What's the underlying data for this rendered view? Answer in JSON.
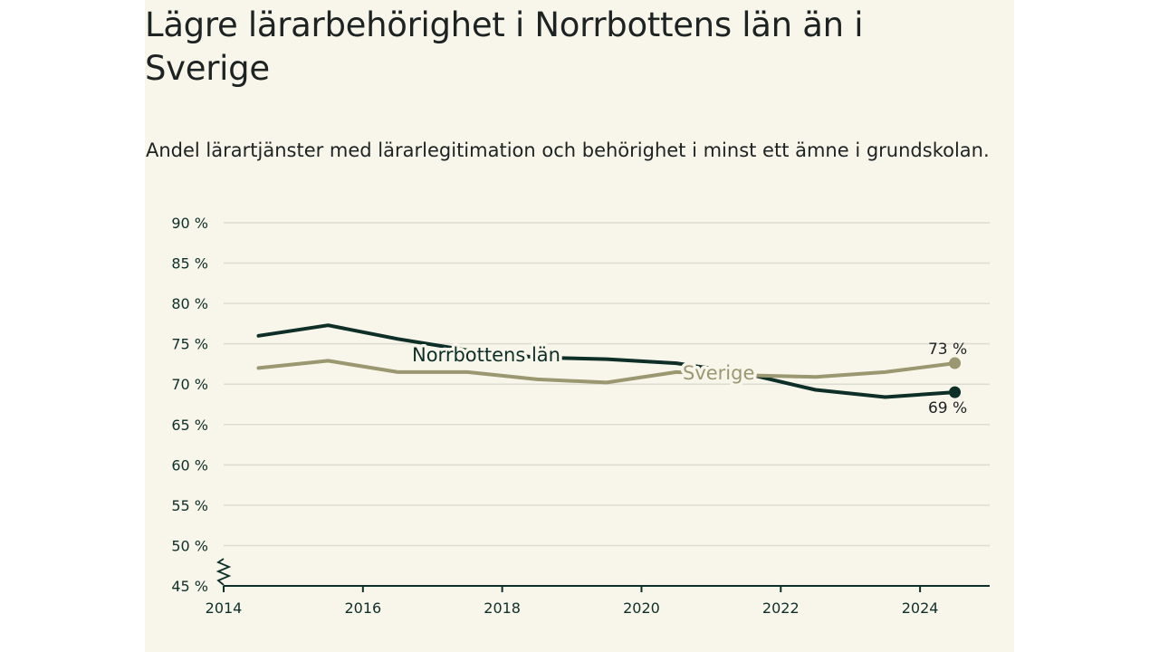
{
  "title": "Lägre lärarbehörighet i Norrbottens län än i Sverige",
  "subtitle": "Andel lärartjänster med lärarlegitimation och behörighet i minst ett ämne i grundskolan.",
  "colors": {
    "norrbotten": "#0d2f28",
    "sverige": "#9a9771",
    "grid": "#dcdcd2",
    "axis": "#0f2f2a"
  },
  "chart_data": {
    "type": "line",
    "x": [
      2014.5,
      2015.5,
      2016.5,
      2017.5,
      2018.5,
      2019.5,
      2020.5,
      2021.5,
      2022.5,
      2023.5,
      2024.5
    ],
    "series": [
      {
        "name": "Norrbottens län",
        "values": [
          76.0,
          77.3,
          75.6,
          74.2,
          73.3,
          73.1,
          72.6,
          71.3,
          69.3,
          68.4,
          69.0
        ],
        "end_label": "69 %"
      },
      {
        "name": "Sverige",
        "values": [
          72.0,
          72.9,
          71.5,
          71.5,
          70.6,
          70.2,
          71.5,
          71.1,
          70.9,
          71.5,
          72.6
        ],
        "end_label": "73 %"
      }
    ],
    "ylim": [
      45,
      90
    ],
    "xlim": [
      2014,
      2025
    ],
    "yticks": [
      45,
      50,
      55,
      60,
      65,
      70,
      75,
      80,
      85,
      90
    ],
    "ytick_labels": [
      "45 %",
      "50 %",
      "55 %",
      "60 %",
      "65 %",
      "70 %",
      "75 %",
      "80 %",
      "85 %",
      "90 %"
    ],
    "xticks": [
      2014,
      2016,
      2018,
      2020,
      2022,
      2024
    ],
    "xtick_labels": [
      "2014",
      "2016",
      "2018",
      "2020",
      "2022",
      "2024"
    ],
    "grid": true,
    "axis_break": true
  }
}
